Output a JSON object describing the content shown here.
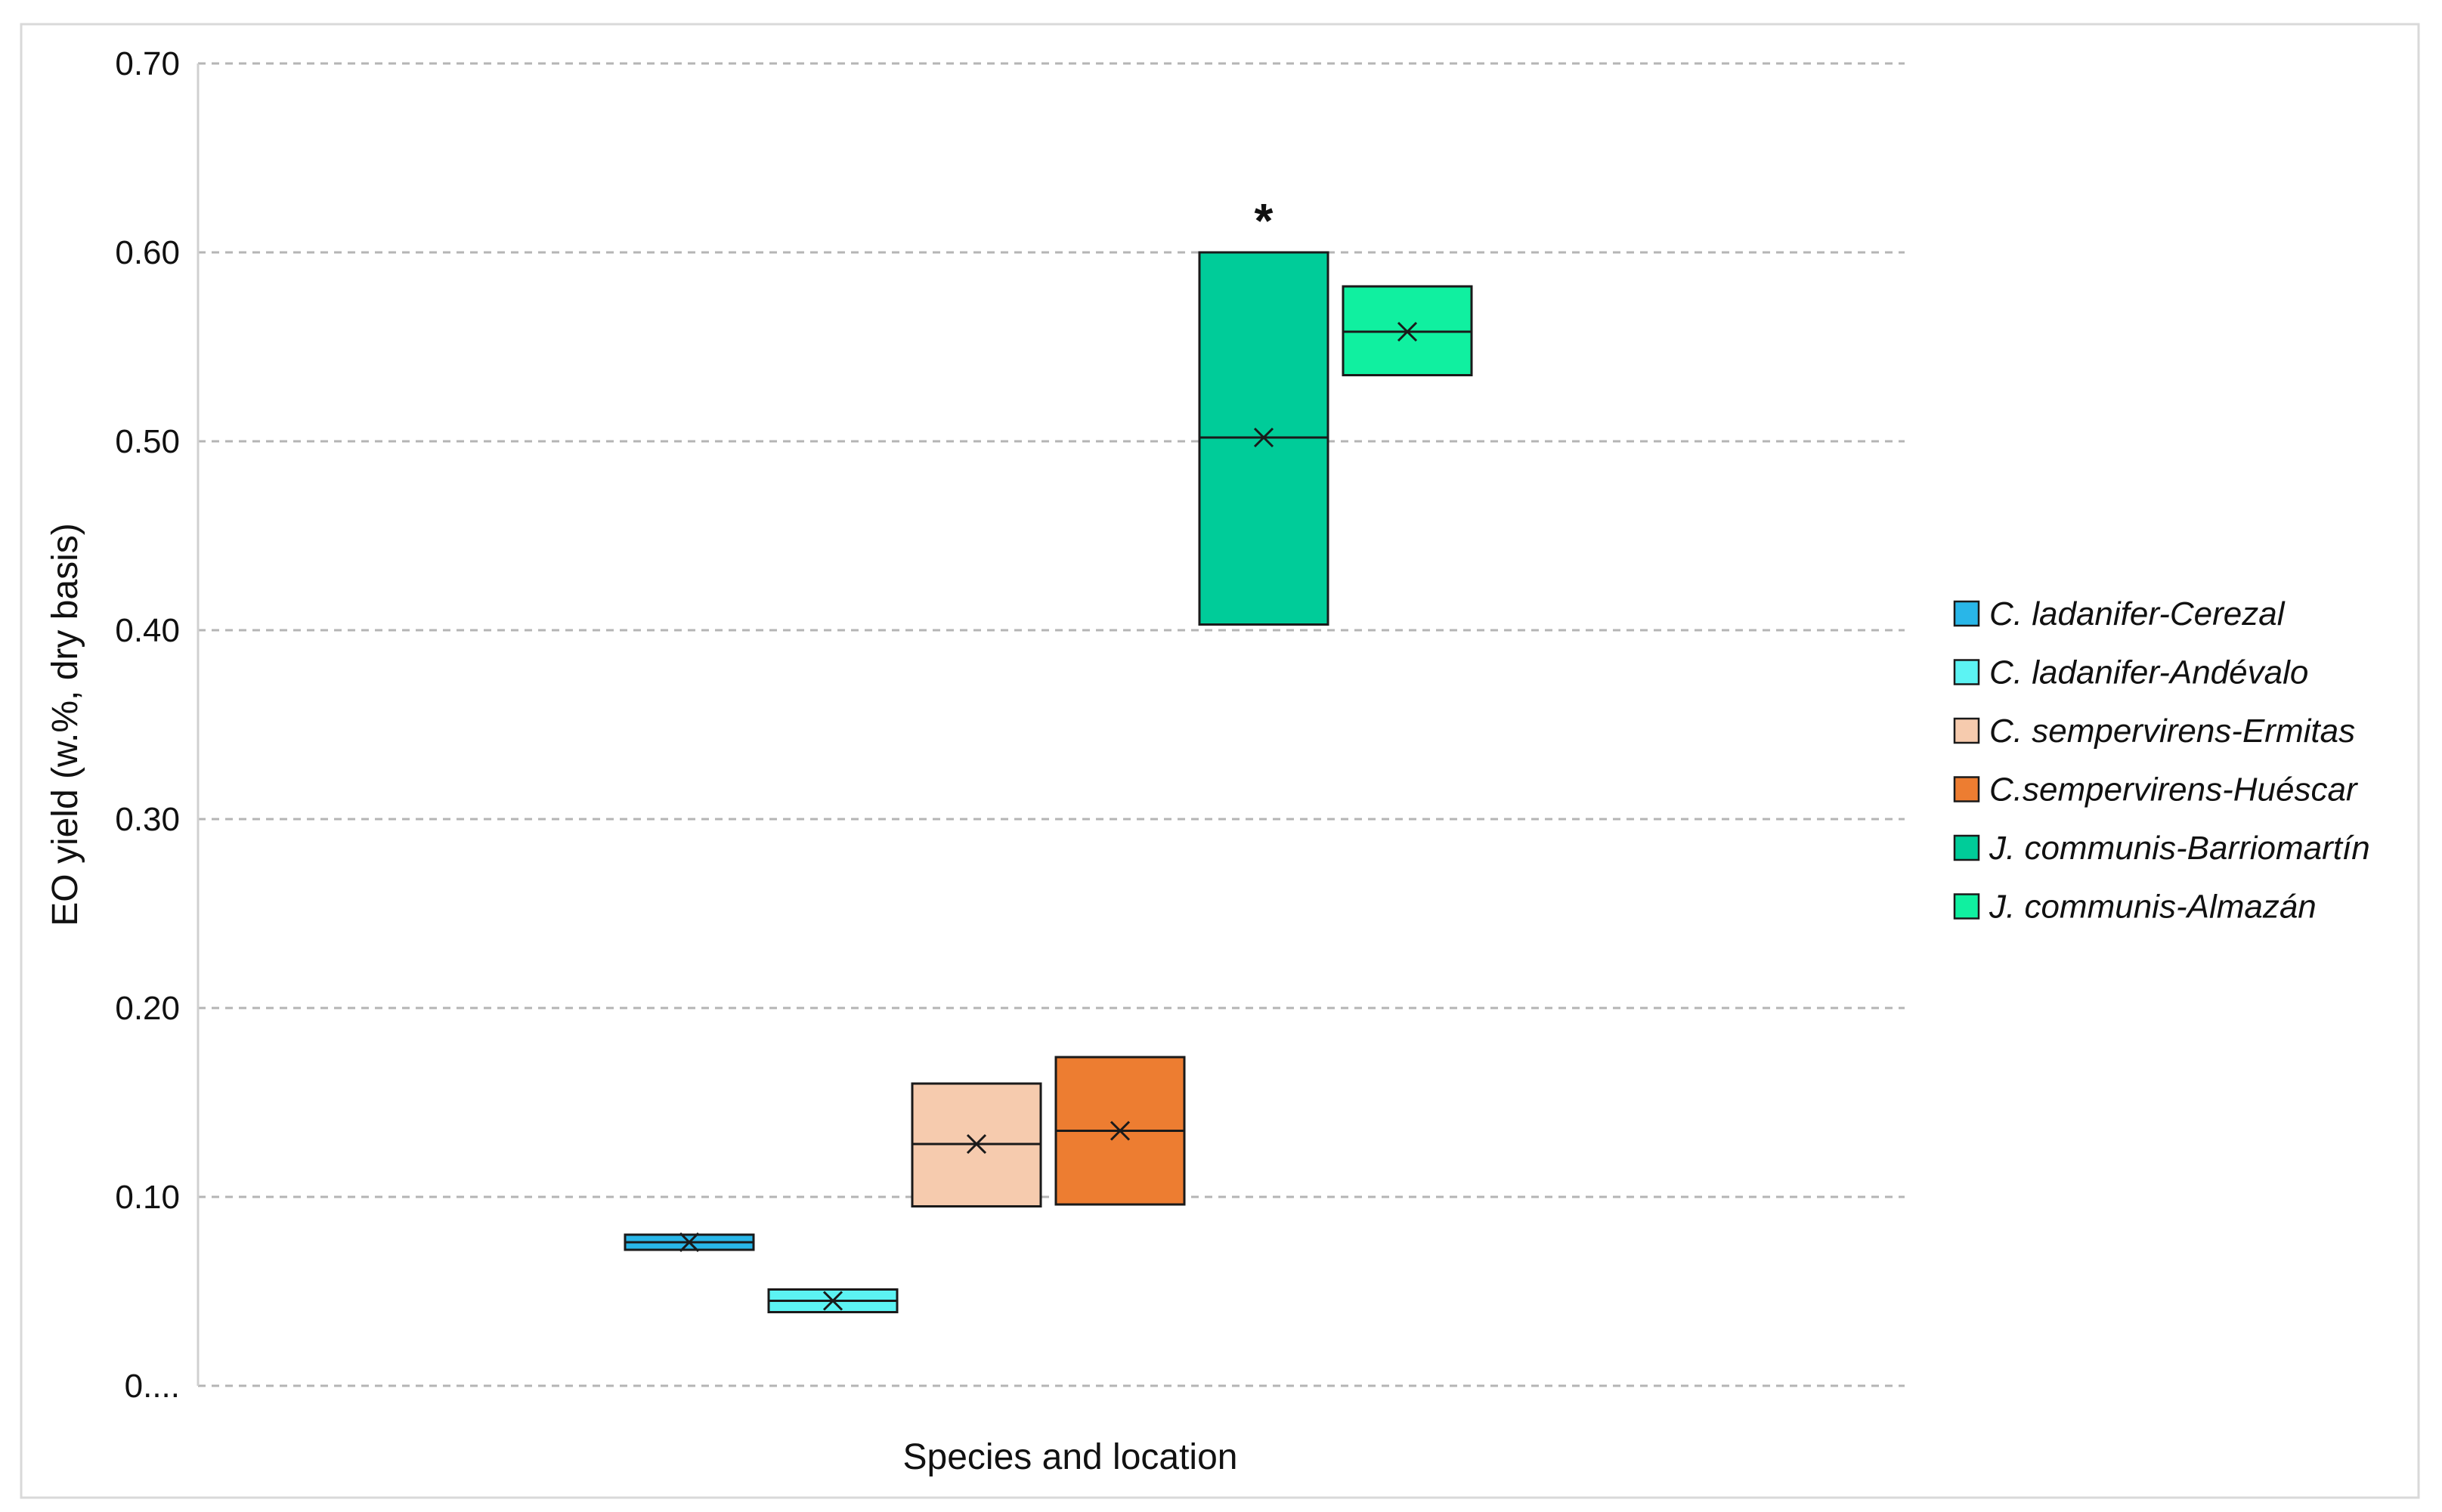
{
  "chart_data": {
    "type": "box",
    "ylabel": "EO yield (w.%, dry basis)",
    "xlabel": "Species and location",
    "ylim": [
      0,
      0.7
    ],
    "y_ticks": [
      0,
      0.1,
      0.2,
      0.3,
      0.4,
      0.5,
      0.6,
      0.7
    ],
    "y_tick_labels": [
      "0....",
      "0.10",
      "0.20",
      "0.30",
      "0.40",
      "0.50",
      "0.60",
      "0.70"
    ],
    "grid": true,
    "legend_position": "right",
    "series": [
      {
        "name": "C. ladanifer-Cerezal",
        "color": "#29B6E8",
        "q1": 0.072,
        "median": 0.076,
        "q3": 0.08,
        "mean": 0.076
      },
      {
        "name": "C. ladanifer-Andévalo",
        "color": "#5CF3F3",
        "q1": 0.039,
        "median": 0.045,
        "q3": 0.051,
        "mean": 0.045
      },
      {
        "name": "C. sempervirens-Ermitas",
        "color": "#F6CBAE",
        "q1": 0.095,
        "median": 0.128,
        "q3": 0.16,
        "mean": 0.128
      },
      {
        "name": "C.sempervirens-Huéscar",
        "color": "#ED7D31",
        "q1": 0.096,
        "median": 0.135,
        "q3": 0.174,
        "mean": 0.135
      },
      {
        "name": "J. communis-Barriomartín",
        "color": "#00CC99",
        "q1": 0.403,
        "median": 0.502,
        "q3": 0.6,
        "mean": 0.502
      },
      {
        "name": "J. communis-Almazán",
        "color": "#10F0A0",
        "q1": 0.535,
        "median": 0.558,
        "q3": 0.582,
        "mean": 0.558
      }
    ],
    "annotations": [
      {
        "text": "*",
        "series_index": 4
      }
    ]
  }
}
